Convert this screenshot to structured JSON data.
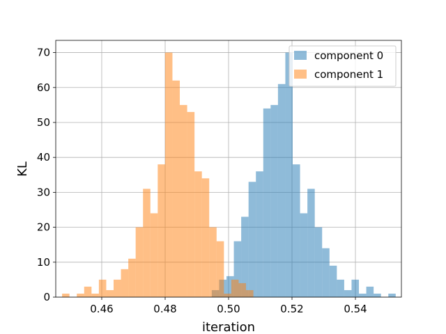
{
  "chart_data": {
    "type": "bar",
    "subtype": "overlapping-histogram",
    "xlabel": "iteration",
    "ylabel": "KL",
    "xlim": [
      0.4455,
      0.5545
    ],
    "ylim": [
      0,
      73.5
    ],
    "xticks": [
      0.46,
      0.48,
      0.5,
      0.52,
      0.54
    ],
    "xtick_labels": [
      "0.46",
      "0.48",
      "0.50",
      "0.52",
      "0.54"
    ],
    "yticks": [
      0,
      10,
      20,
      30,
      40,
      50,
      60,
      70
    ],
    "ytick_labels": [
      "0",
      "10",
      "20",
      "30",
      "40",
      "50",
      "60",
      "70"
    ],
    "grid": true,
    "legend": "top-right",
    "series": [
      {
        "name": "component 0",
        "color": "#1f77b4",
        "alpha": 0.5,
        "bin_start": 0.4947,
        "bin_width": 0.00232,
        "values": [
          2,
          5,
          6,
          16,
          23,
          33,
          36,
          54,
          55,
          61,
          70,
          38,
          24,
          31,
          20,
          14,
          9,
          5,
          2,
          5,
          1,
          3,
          1,
          0,
          1
        ]
      },
      {
        "name": "component 1",
        "color": "#ff7f0e",
        "alpha": 0.5,
        "bin_start": 0.4475,
        "bin_width": 0.00232,
        "values": [
          1,
          0,
          1,
          3,
          1,
          5,
          2,
          5,
          8,
          11,
          20,
          31,
          24,
          38,
          70,
          62,
          55,
          53,
          36,
          34,
          20,
          16,
          1,
          5,
          4,
          2
        ]
      }
    ]
  }
}
